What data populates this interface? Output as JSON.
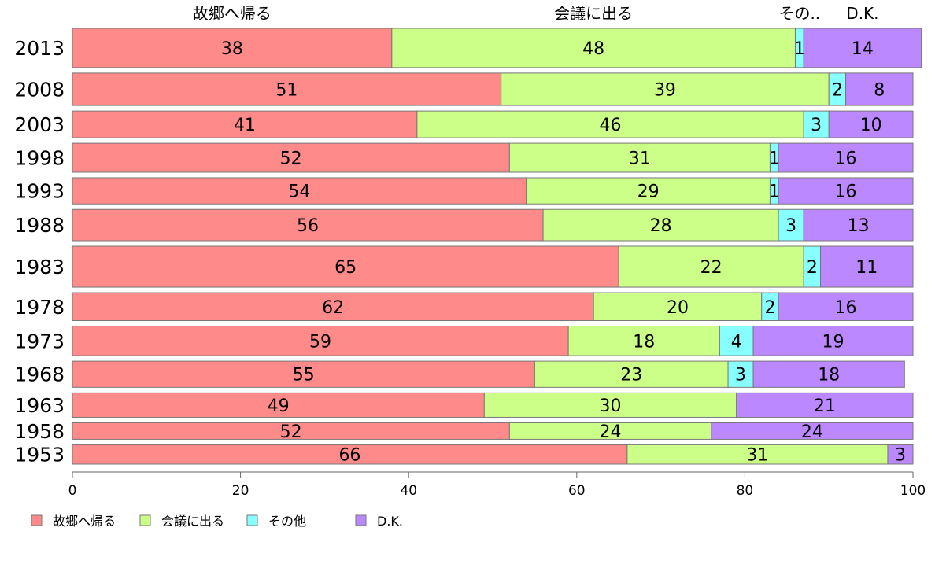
{
  "chart_data": {
    "type": "bar",
    "orientation": "horizontal",
    "stacked": true,
    "title": "",
    "xlabel": "",
    "ylabel": "",
    "xlim": [
      0,
      100
    ],
    "xticks": [
      0,
      20,
      40,
      60,
      80,
      100
    ],
    "grid": false,
    "legend_position": "bottom-left",
    "categories": [
      "2013",
      "2008",
      "2003",
      "1998",
      "1993",
      "1988",
      "1983",
      "1978",
      "1973",
      "1968",
      "1963",
      "1958",
      "1953"
    ],
    "category_weights": [
      69,
      57,
      47,
      51,
      46,
      55,
      72,
      49,
      52,
      46,
      43,
      29,
      34
    ],
    "series": [
      {
        "name": "故郷へ帰る",
        "top_label": "故郷へ帰る",
        "color": "#ff8a8a",
        "values": [
          38,
          51,
          41,
          52,
          54,
          56,
          65,
          62,
          59,
          55,
          49,
          52,
          66
        ]
      },
      {
        "name": "会議に出る",
        "top_label": "会議に出る",
        "color": "#ccff88",
        "values": [
          48,
          39,
          46,
          31,
          29,
          28,
          22,
          20,
          18,
          23,
          30,
          24,
          31
        ]
      },
      {
        "name": "その他",
        "top_label": "その..",
        "color": "#88ffff",
        "values": [
          1,
          2,
          3,
          1,
          1,
          3,
          2,
          2,
          4,
          3,
          0,
          0,
          0
        ]
      },
      {
        "name": "D.K.",
        "top_label": "D.K.",
        "color": "#bb88ff",
        "values": [
          14,
          8,
          10,
          16,
          16,
          13,
          11,
          16,
          19,
          18,
          21,
          24,
          3
        ]
      }
    ]
  }
}
